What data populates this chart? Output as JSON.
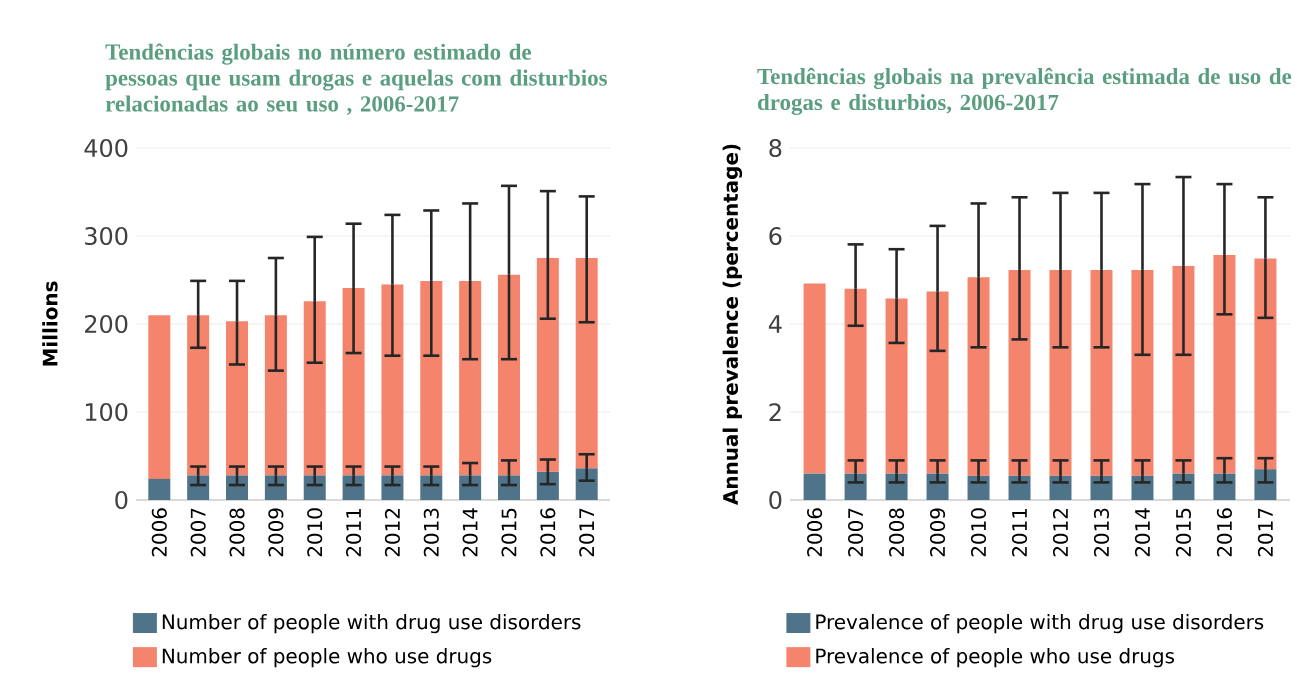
{
  "chart_data": [
    {
      "type": "bar",
      "title": "Tendências globais no número estimado de pessoas que usam drogas e aquelas com disturbios relacionadas ao seu uso , 2006-2017",
      "ylabel": "Millions",
      "categories": [
        "2006",
        "2007",
        "2008",
        "2009",
        "2010",
        "2011",
        "2012",
        "2013",
        "2014",
        "2015",
        "2016",
        "2017"
      ],
      "stacked": true,
      "ylim": [
        0,
        400
      ],
      "yticks": [
        0,
        100,
        200,
        300,
        400
      ],
      "grid": "y",
      "legend": "bottom",
      "series": [
        {
          "name": "Number of people with drug use disorders",
          "color": "#4f7389",
          "values": [
            24,
            28,
            28,
            28,
            28,
            28,
            28,
            28,
            28,
            28,
            32,
            36
          ],
          "errors": [
            null,
            [
              17,
              38
            ],
            [
              17,
              38
            ],
            [
              17,
              38
            ],
            [
              17,
              38
            ],
            [
              17,
              38
            ],
            [
              17,
              38
            ],
            [
              17,
              38
            ],
            [
              17,
              42
            ],
            [
              17,
              45
            ],
            [
              18,
              46
            ],
            [
              22,
              52
            ]
          ]
        },
        {
          "name": "Number of people who use drugs",
          "color": "#f4846c",
          "values": [
            186,
            182,
            175,
            182,
            198,
            213,
            217,
            221,
            221,
            228,
            243,
            239
          ],
          "errors": [
            null,
            [
              173,
              249
            ],
            [
              154,
              249
            ],
            [
              147,
              275
            ],
            [
              156,
              299
            ],
            [
              167,
              314
            ],
            [
              164,
              324
            ],
            [
              164,
              329
            ],
            [
              160,
              337
            ],
            [
              160,
              357
            ],
            [
              206,
              351
            ],
            [
              202,
              345
            ]
          ]
        }
      ]
    },
    {
      "type": "bar",
      "title": "Tendências globais na prevalência estimada de uso de drogas e disturbios, 2006-2017",
      "ylabel": "Annual prevalence (percentage)",
      "categories": [
        "2006",
        "2007",
        "2008",
        "2009",
        "2010",
        "2011",
        "2012",
        "2013",
        "2014",
        "2015",
        "2016",
        "2017"
      ],
      "stacked": true,
      "ylim": [
        0,
        8
      ],
      "yticks": [
        0,
        2,
        4,
        6,
        8
      ],
      "grid": "y",
      "legend": "bottom",
      "series": [
        {
          "name": "Prevalence of people with drug use disorders",
          "color": "#4f7389",
          "values": [
            0.6,
            0.6,
            0.6,
            0.6,
            0.55,
            0.55,
            0.55,
            0.55,
            0.55,
            0.6,
            0.6,
            0.7
          ],
          "errors": [
            null,
            [
              0.4,
              0.9
            ],
            [
              0.4,
              0.9
            ],
            [
              0.4,
              0.9
            ],
            [
              0.4,
              0.9
            ],
            [
              0.4,
              0.9
            ],
            [
              0.4,
              0.9
            ],
            [
              0.4,
              0.9
            ],
            [
              0.4,
              0.9
            ],
            [
              0.4,
              0.9
            ],
            [
              0.4,
              0.95
            ],
            [
              0.4,
              0.95
            ]
          ]
        },
        {
          "name": "Prevalence of people who use drugs",
          "color": "#f4846c",
          "values": [
            4.32,
            4.2,
            3.98,
            4.14,
            4.51,
            4.68,
            4.68,
            4.68,
            4.68,
            4.72,
            4.97,
            4.79
          ],
          "errors": [
            null,
            [
              3.96,
              5.81
            ],
            [
              3.57,
              5.7
            ],
            [
              3.39,
              6.23
            ],
            [
              3.47,
              6.74
            ],
            [
              3.65,
              6.88
            ],
            [
              3.47,
              6.98
            ],
            [
              3.47,
              6.98
            ],
            [
              3.3,
              7.18
            ],
            [
              3.3,
              7.34
            ],
            [
              4.22,
              7.18
            ],
            [
              4.14,
              6.88
            ]
          ]
        }
      ]
    }
  ]
}
